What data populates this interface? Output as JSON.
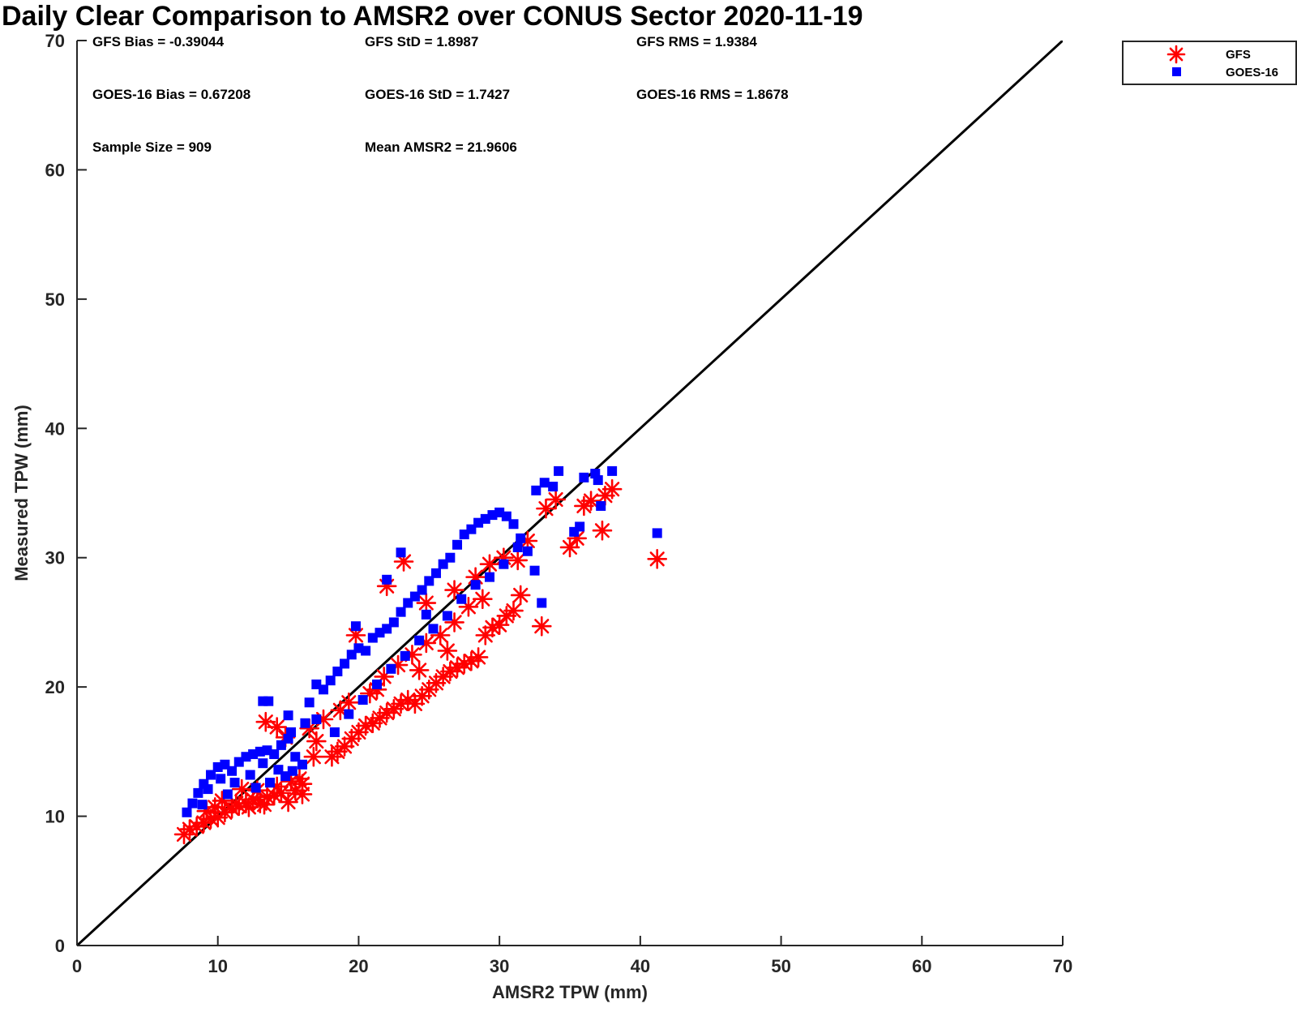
{
  "chart_data": {
    "type": "scatter",
    "title": "Daily Clear Comparison to AMSR2 over CONUS Sector 2020-11-19",
    "xlabel": "AMSR2 TPW (mm)",
    "ylabel": "Measured TPW (mm)",
    "xlim": [
      0,
      70
    ],
    "ylim": [
      0,
      70
    ],
    "x_ticks": [
      0,
      10,
      20,
      30,
      40,
      50,
      60,
      70
    ],
    "y_ticks": [
      0,
      10,
      20,
      30,
      40,
      50,
      60,
      70
    ],
    "grid": false,
    "legend_position": "top-right, outside plot",
    "reference_line": {
      "type": "one-to-one",
      "from": [
        0,
        0
      ],
      "to": [
        70,
        70
      ],
      "color": "#000000"
    },
    "stats": {
      "gfs_bias": "GFS Bias = -0.39044",
      "gfs_std": "GFS StD = 1.8987",
      "gfs_rms": "GFS RMS = 1.9384",
      "goes_bias": "GOES-16 Bias = 0.67208",
      "goes_std": "GOES-16 StD = 1.7427",
      "goes_rms": "GOES-16 RMS = 1.8678",
      "sample_size": "Sample Size = 909",
      "mean_amsr2": "Mean AMSR2 = 21.9606"
    },
    "series": [
      {
        "name": "GFS",
        "marker": "asterisk",
        "color": "#ff0000",
        "points": [
          [
            7.6,
            8.6
          ],
          [
            8.0,
            9.0
          ],
          [
            8.5,
            9.2
          ],
          [
            9.0,
            9.5
          ],
          [
            9.5,
            9.8
          ],
          [
            10.0,
            9.9
          ],
          [
            10.5,
            10.3
          ],
          [
            11.0,
            10.6
          ],
          [
            11.5,
            10.8
          ],
          [
            12.0,
            11.0
          ],
          [
            12.5,
            11.3
          ],
          [
            13.0,
            11.0
          ],
          [
            13.5,
            11.5
          ],
          [
            14.0,
            11.6
          ],
          [
            14.5,
            11.8
          ],
          [
            15.0,
            11.1
          ],
          [
            15.5,
            12.0
          ],
          [
            16.0,
            12.5
          ],
          [
            16.0,
            11.7
          ],
          [
            15.8,
            12.9
          ],
          [
            9.2,
            10.4
          ],
          [
            9.8,
            10.7
          ],
          [
            10.3,
            11.2
          ],
          [
            11.3,
            11.0
          ],
          [
            12.2,
            10.7
          ],
          [
            12.8,
            12.0
          ],
          [
            13.3,
            10.9
          ],
          [
            14.2,
            12.3
          ],
          [
            15.2,
            12.7
          ],
          [
            11.7,
            12.1
          ],
          [
            13.4,
            17.3
          ],
          [
            14.2,
            16.9
          ],
          [
            14.8,
            16.1
          ],
          [
            16.8,
            14.6
          ],
          [
            18.1,
            14.6
          ],
          [
            18.5,
            15.0
          ],
          [
            19.0,
            15.4
          ],
          [
            19.5,
            16.0
          ],
          [
            20.0,
            16.5
          ],
          [
            20.5,
            17.0
          ],
          [
            21.0,
            17.2
          ],
          [
            21.5,
            17.6
          ],
          [
            22.0,
            18.0
          ],
          [
            22.5,
            18.3
          ],
          [
            23.0,
            18.7
          ],
          [
            23.5,
            19.0
          ],
          [
            24.0,
            18.7
          ],
          [
            24.5,
            19.3
          ],
          [
            25.0,
            19.8
          ],
          [
            25.5,
            20.3
          ],
          [
            26.0,
            20.8
          ],
          [
            26.5,
            21.2
          ],
          [
            27.0,
            21.5
          ],
          [
            27.5,
            21.8
          ],
          [
            28.0,
            22.0
          ],
          [
            28.5,
            22.3
          ],
          [
            29.0,
            24.0
          ],
          [
            29.5,
            24.6
          ],
          [
            30.0,
            24.8
          ],
          [
            30.5,
            25.5
          ],
          [
            31.0,
            25.9
          ],
          [
            31.5,
            27.1
          ],
          [
            32.0,
            31.3
          ],
          [
            33.0,
            24.7
          ],
          [
            33.3,
            33.8
          ],
          [
            34.0,
            34.5
          ],
          [
            35.0,
            30.8
          ],
          [
            35.5,
            31.5
          ],
          [
            36.0,
            34.0
          ],
          [
            36.5,
            34.4
          ],
          [
            37.3,
            32.1
          ],
          [
            37.5,
            34.8
          ],
          [
            38.0,
            35.3
          ],
          [
            41.2,
            29.9
          ],
          [
            19.8,
            24.0
          ],
          [
            22.0,
            27.8
          ],
          [
            23.2,
            29.7
          ],
          [
            24.8,
            26.5
          ],
          [
            26.8,
            27.5
          ],
          [
            28.3,
            28.5
          ],
          [
            29.3,
            29.5
          ],
          [
            30.3,
            30.0
          ],
          [
            31.3,
            29.8
          ],
          [
            17.5,
            17.5
          ],
          [
            18.7,
            18.2
          ],
          [
            20.8,
            19.5
          ],
          [
            21.8,
            20.8
          ],
          [
            22.8,
            21.7
          ],
          [
            23.8,
            22.5
          ],
          [
            24.8,
            23.4
          ],
          [
            25.8,
            24.0
          ],
          [
            26.8,
            25.0
          ],
          [
            27.8,
            26.2
          ],
          [
            28.8,
            26.8
          ],
          [
            19.3,
            18.8
          ],
          [
            16.5,
            16.8
          ],
          [
            17.0,
            15.8
          ],
          [
            21.3,
            19.8
          ],
          [
            24.3,
            21.3
          ],
          [
            26.3,
            22.8
          ]
        ]
      },
      {
        "name": "GOES-16",
        "marker": "square",
        "color": "#0000ff",
        "points": [
          [
            7.8,
            10.3
          ],
          [
            8.2,
            11.0
          ],
          [
            8.6,
            11.8
          ],
          [
            9.0,
            12.5
          ],
          [
            9.5,
            13.2
          ],
          [
            10.0,
            13.8
          ],
          [
            10.5,
            14.0
          ],
          [
            11.0,
            13.5
          ],
          [
            11.5,
            14.2
          ],
          [
            12.0,
            14.6
          ],
          [
            12.5,
            14.8
          ],
          [
            13.0,
            15.0
          ],
          [
            13.5,
            15.1
          ],
          [
            14.0,
            14.8
          ],
          [
            14.5,
            15.5
          ],
          [
            15.0,
            16.0
          ],
          [
            15.5,
            14.6
          ],
          [
            16.0,
            14.0
          ],
          [
            9.3,
            12.1
          ],
          [
            10.2,
            12.9
          ],
          [
            11.2,
            12.6
          ],
          [
            12.3,
            13.2
          ],
          [
            13.2,
            14.1
          ],
          [
            14.3,
            13.6
          ],
          [
            15.3,
            13.5
          ],
          [
            8.9,
            10.9
          ],
          [
            10.7,
            11.7
          ],
          [
            13.7,
            12.6
          ],
          [
            12.7,
            12.2
          ],
          [
            14.8,
            13.1
          ],
          [
            13.2,
            18.9
          ],
          [
            13.6,
            18.9
          ],
          [
            15.0,
            17.8
          ],
          [
            16.5,
            18.8
          ],
          [
            17.0,
            20.2
          ],
          [
            17.5,
            19.8
          ],
          [
            18.0,
            20.5
          ],
          [
            18.5,
            21.2
          ],
          [
            19.0,
            21.8
          ],
          [
            19.5,
            22.5
          ],
          [
            20.0,
            23.0
          ],
          [
            20.5,
            22.8
          ],
          [
            21.0,
            23.8
          ],
          [
            21.5,
            24.2
          ],
          [
            22.0,
            24.5
          ],
          [
            22.5,
            25.0
          ],
          [
            23.0,
            25.8
          ],
          [
            23.5,
            26.5
          ],
          [
            24.0,
            27.0
          ],
          [
            24.5,
            27.5
          ],
          [
            25.0,
            28.2
          ],
          [
            25.5,
            28.8
          ],
          [
            26.0,
            29.5
          ],
          [
            26.5,
            30.0
          ],
          [
            27.0,
            31.0
          ],
          [
            27.5,
            31.8
          ],
          [
            28.0,
            32.2
          ],
          [
            28.5,
            32.7
          ],
          [
            29.0,
            33.0
          ],
          [
            29.5,
            33.3
          ],
          [
            30.0,
            33.5
          ],
          [
            30.5,
            33.2
          ],
          [
            31.0,
            32.6
          ],
          [
            31.5,
            31.5
          ],
          [
            32.0,
            30.5
          ],
          [
            32.5,
            29.0
          ],
          [
            33.0,
            26.5
          ],
          [
            19.8,
            24.7
          ],
          [
            22.0,
            28.3
          ],
          [
            23.0,
            30.4
          ],
          [
            32.6,
            35.2
          ],
          [
            33.2,
            35.8
          ],
          [
            33.8,
            35.5
          ],
          [
            34.2,
            36.7
          ],
          [
            35.3,
            32.0
          ],
          [
            35.7,
            32.4
          ],
          [
            36.0,
            36.2
          ],
          [
            36.8,
            36.5
          ],
          [
            37.0,
            36.0
          ],
          [
            37.2,
            34.0
          ],
          [
            38.0,
            36.7
          ],
          [
            41.2,
            31.9
          ],
          [
            17.0,
            17.5
          ],
          [
            18.3,
            16.5
          ],
          [
            19.3,
            17.9
          ],
          [
            20.3,
            19.0
          ],
          [
            21.3,
            20.2
          ],
          [
            22.3,
            21.4
          ],
          [
            23.3,
            22.4
          ],
          [
            24.3,
            23.6
          ],
          [
            25.3,
            24.5
          ],
          [
            26.3,
            25.5
          ],
          [
            27.3,
            26.8
          ],
          [
            28.3,
            27.9
          ],
          [
            29.3,
            28.5
          ],
          [
            30.3,
            29.5
          ],
          [
            31.3,
            30.8
          ],
          [
            15.2,
            16.5
          ],
          [
            16.2,
            17.2
          ],
          [
            24.8,
            25.6
          ]
        ]
      }
    ]
  }
}
